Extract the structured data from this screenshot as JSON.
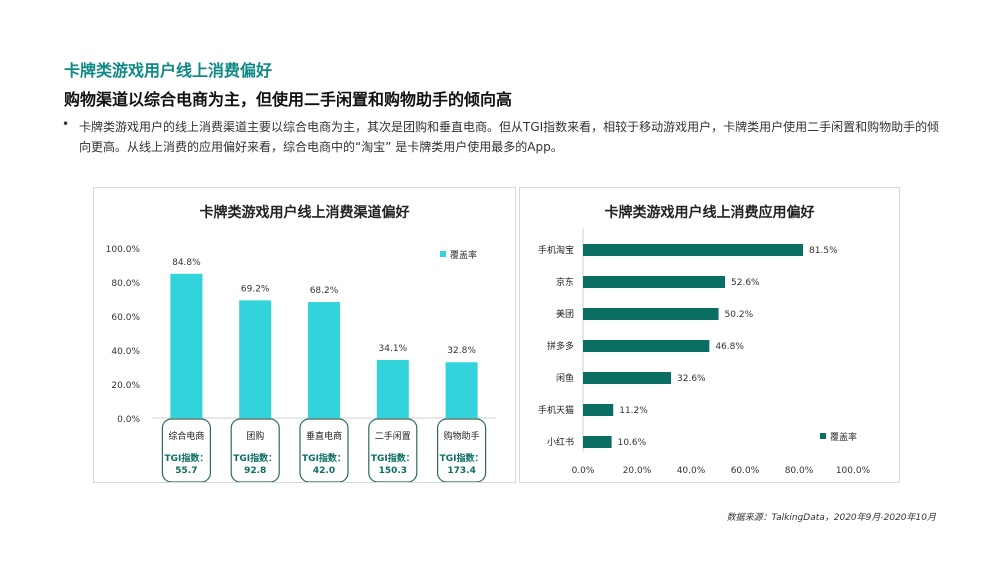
{
  "header": {
    "title": "卡牌类游戏用户线上消费偏好",
    "subtitle": "购物渠道以综合电商为主，但使用二手闲置和购物助手的倾向高",
    "bullet": "卡牌类游戏用户的线上消费渠道主要以综合电商为主，其次是团购和垂直电商。但从TGI指数来看，相较于移动游戏用户，卡牌类用户使用二手闲置和购物助手的倾向更高。从线上消费的应用偏好来看，综合电商中的“淘宝” 是卡牌类用户使用最多的App。"
  },
  "source": "数据来源：TalkingData，2020年9月-2020年10月",
  "colors": {
    "title": "#0f8a86",
    "bar_cyan": "#33d3dc",
    "bar_dark": "#0b6e63",
    "box_border": "#2a6b5e"
  },
  "chart_data": [
    {
      "type": "bar",
      "title": "卡牌类游戏用户线上消费渠道偏好",
      "categories": [
        "综合电商",
        "团购",
        "垂直电商",
        "二手闲置",
        "购物助手"
      ],
      "series": [
        {
          "name": "覆盖率",
          "values": [
            84.8,
            69.2,
            68.2,
            34.1,
            32.8
          ]
        }
      ],
      "value_labels": [
        "84.8%",
        "69.2%",
        "68.2%",
        "34.1%",
        "32.8%"
      ],
      "tgi_label": "TGI指数：",
      "tgi_values": [
        "55.7",
        "92.8",
        "42.0",
        "150.3",
        "173.4"
      ],
      "ylim": [
        0,
        100
      ],
      "yticks": [
        "0.0%",
        "20.0%",
        "40.0%",
        "60.0%",
        "80.0%",
        "100.0%"
      ],
      "legend_position": "top-right"
    },
    {
      "type": "bar",
      "orientation": "horizontal",
      "title": "卡牌类游戏用户线上消费应用偏好",
      "categories": [
        "手机淘宝",
        "京东",
        "美团",
        "拼多多",
        "闲鱼",
        "手机天猫",
        "小红书"
      ],
      "series": [
        {
          "name": "覆盖率",
          "values": [
            81.5,
            52.6,
            50.2,
            46.8,
            32.6,
            11.2,
            10.6
          ]
        }
      ],
      "value_labels": [
        "81.5%",
        "52.6%",
        "50.2%",
        "46.8%",
        "32.6%",
        "11.2%",
        "10.6%"
      ],
      "xlim": [
        0,
        100
      ],
      "xticks": [
        "0.0%",
        "20.0%",
        "40.0%",
        "60.0%",
        "80.0%",
        "100.0%"
      ],
      "legend_position": "bottom-right"
    }
  ]
}
